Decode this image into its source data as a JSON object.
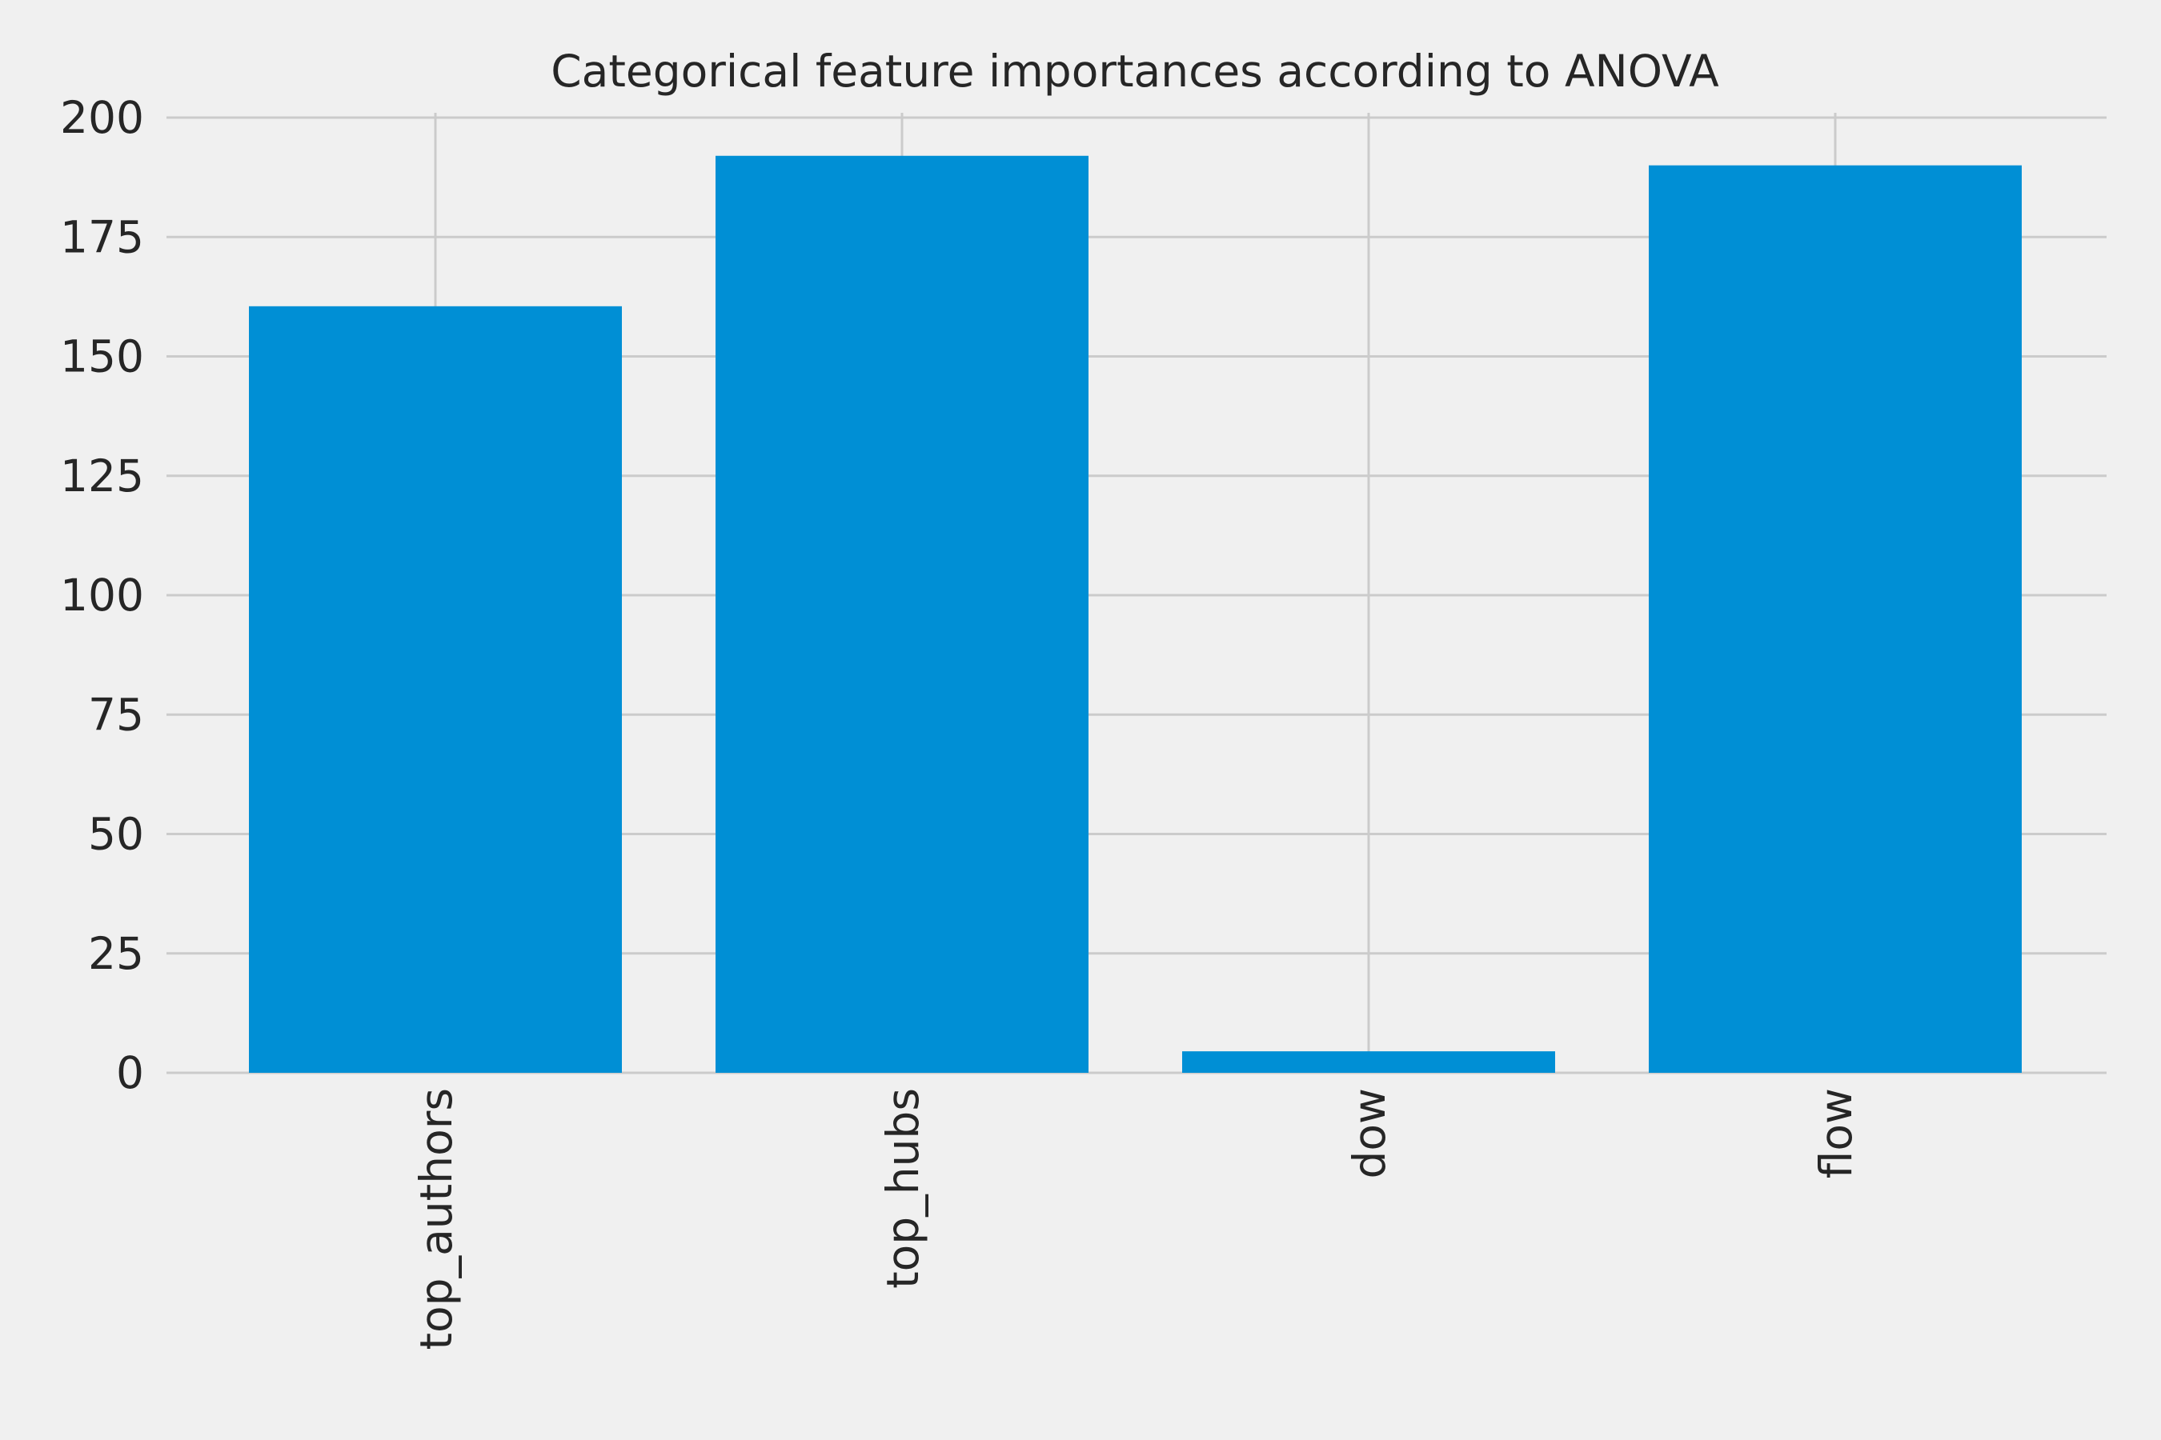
{
  "chart_data": {
    "type": "bar",
    "title": "Categorical feature importances according to ANOVA",
    "xlabel": "",
    "ylabel": "",
    "categories": [
      "top_authors",
      "top_hubs",
      "dow",
      "flow"
    ],
    "values": [
      160.5,
      192.0,
      4.5,
      190.0
    ],
    "ylim": [
      0,
      200
    ],
    "yticks": [
      0,
      25,
      50,
      75,
      100,
      125,
      150,
      175,
      200
    ],
    "grid": true,
    "x_tick_rotation": "vertical",
    "bar_color": "#008fd5",
    "background_color": "#f0f0f0",
    "grid_color": "#cbcbcb",
    "text_color": "#262626"
  }
}
